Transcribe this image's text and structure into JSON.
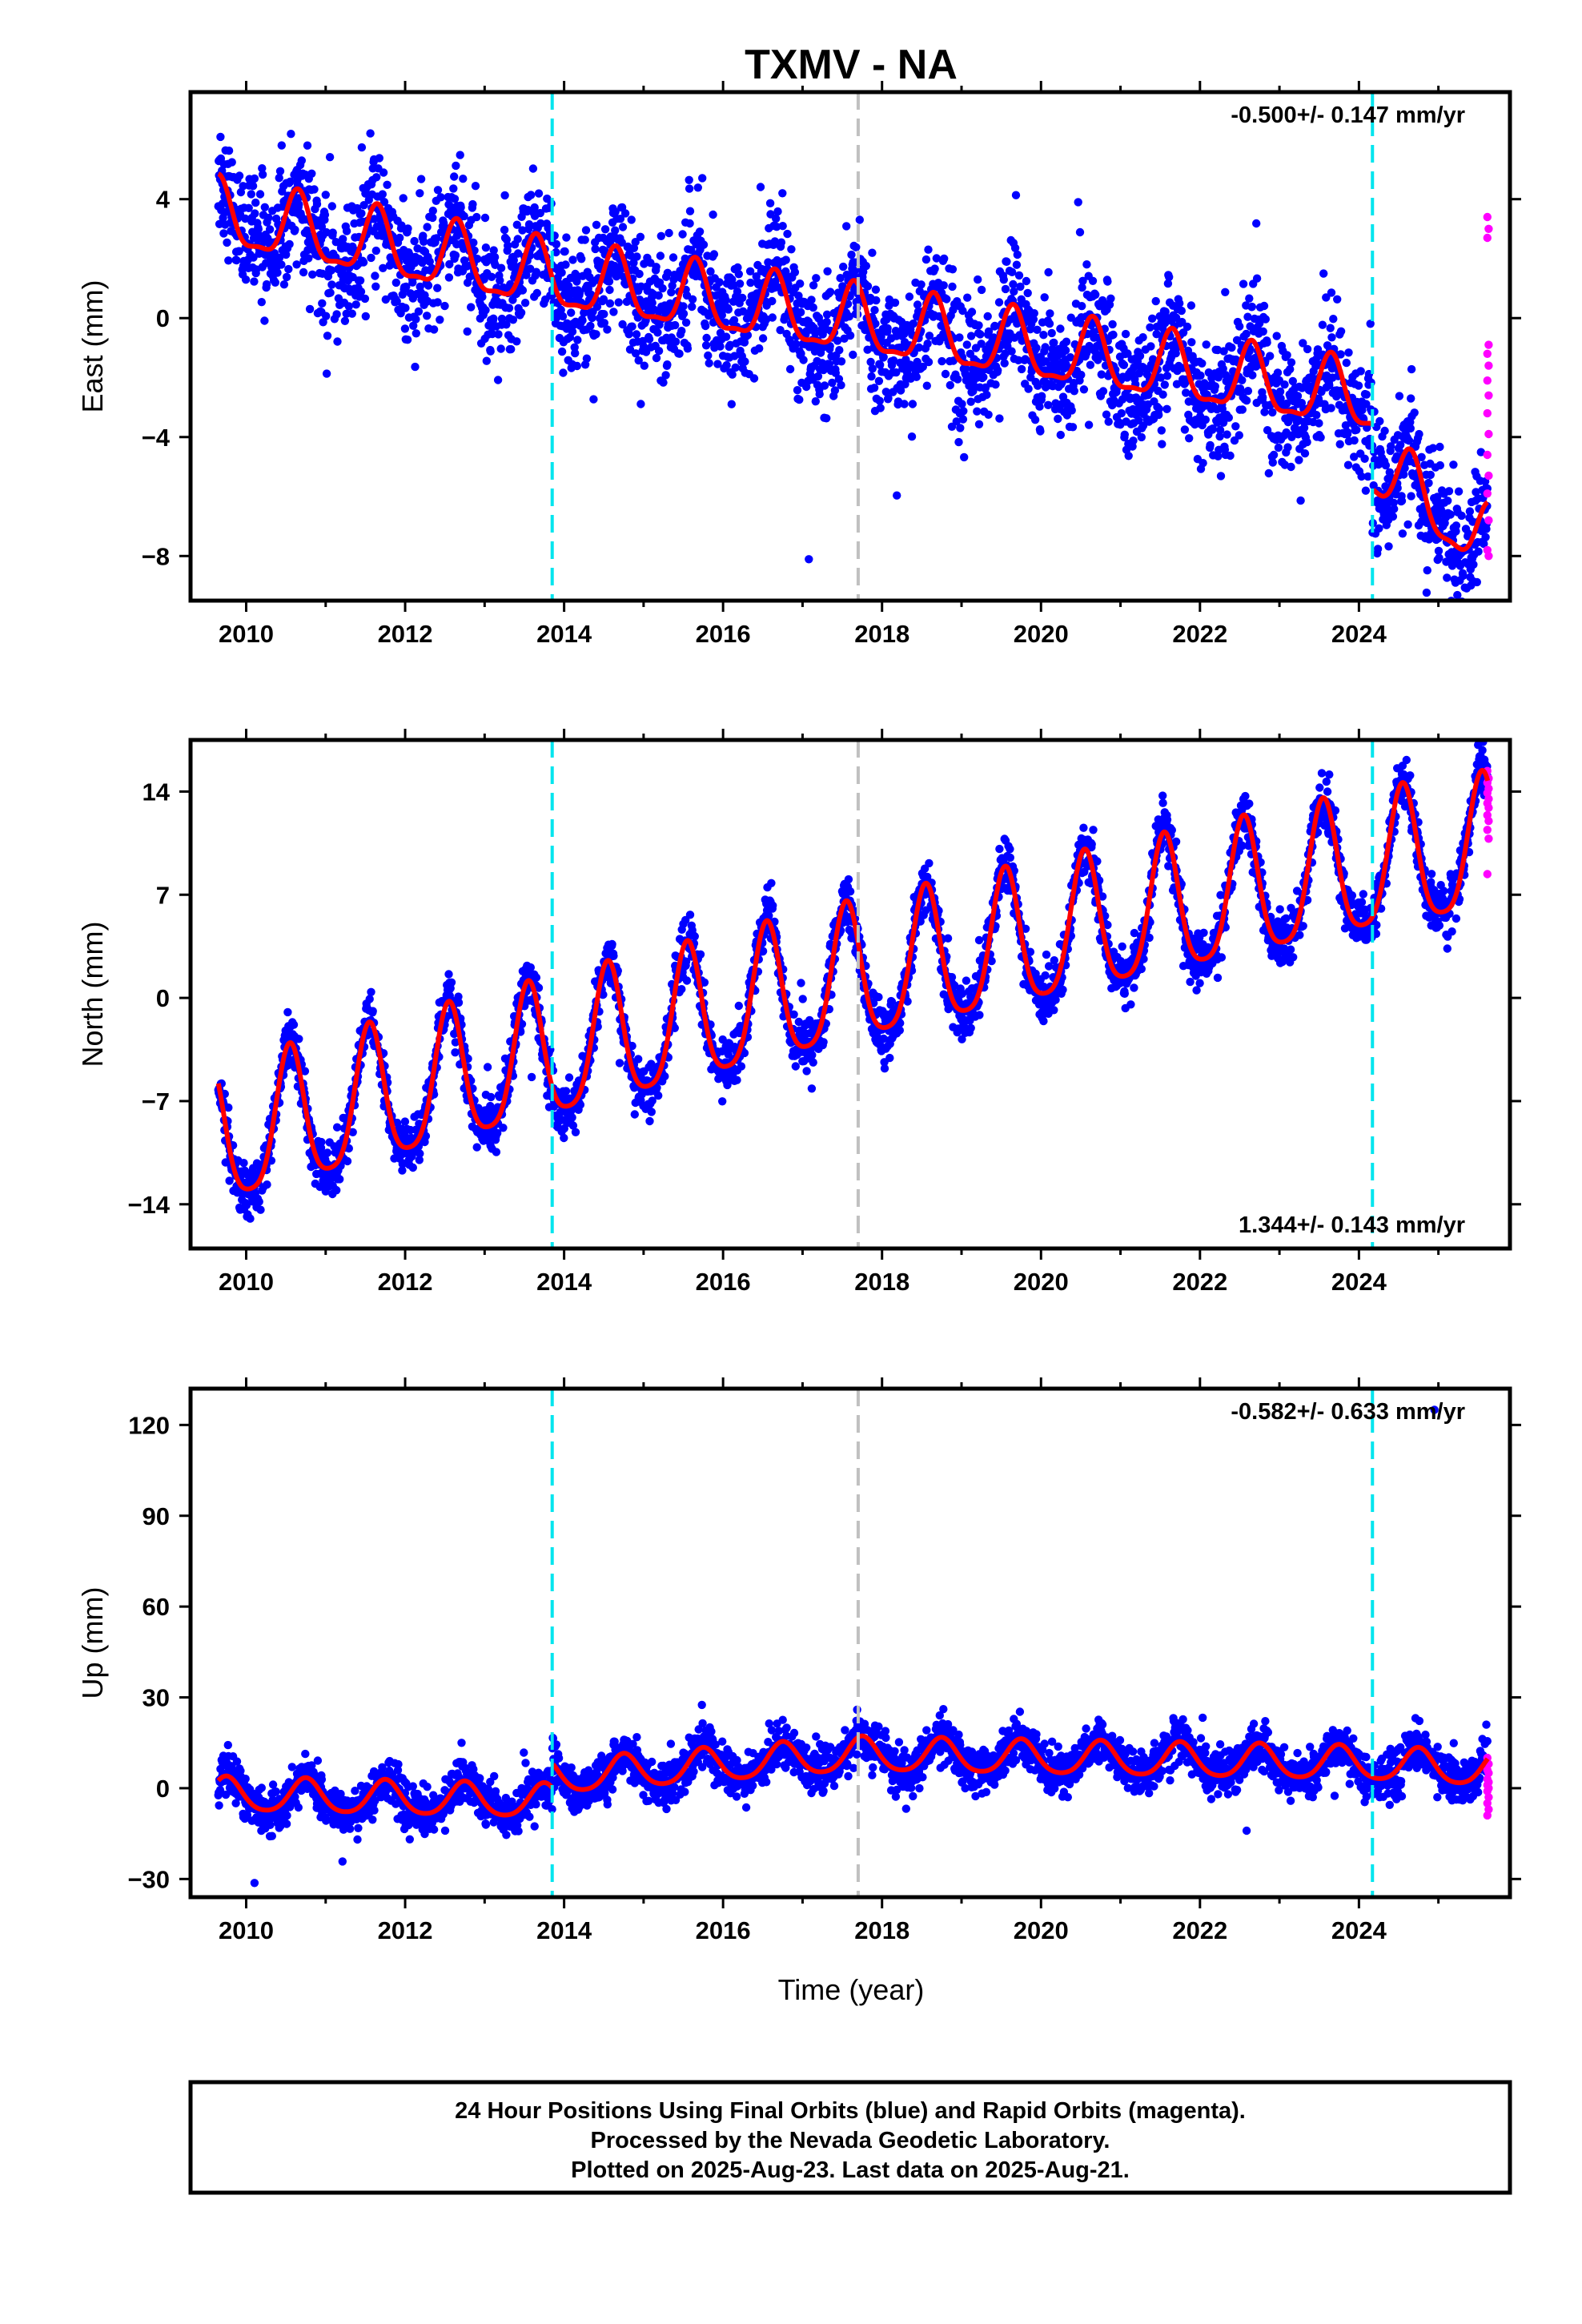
{
  "title": "TXMV - NA",
  "x_axis_label": "Time (year)",
  "footer": {
    "line1": "24 Hour Positions Using Final Orbits (blue) and Rapid Orbits (magenta).",
    "line2": "Processed by the Nevada Geodetic Laboratory.",
    "line3": "Plotted on 2025-Aug-23. Last data on 2025-Aug-21."
  },
  "colors": {
    "final_orbits": "#0000ff",
    "rapid_orbits": "#ff00ff",
    "model_fit": "#ff0000",
    "equipment_change": "#00e5ee",
    "event_marker": "#c0c0c0",
    "frame": "#000000"
  },
  "chart_data": [
    {
      "type": "scatter",
      "panel": "east",
      "ylabel": "East (mm)",
      "rate_text": "-0.500+/- 0.147 mm/yr",
      "rate_position": "top-right",
      "xlim": [
        2009.3,
        2025.9
      ],
      "ylim": [
        -9.5,
        7.6
      ],
      "x_ticks": [
        2010,
        2012,
        2014,
        2016,
        2018,
        2020,
        2022,
        2024
      ],
      "y_ticks": [
        -8,
        -4,
        0,
        4
      ],
      "y_tick_labels": [
        "−8",
        "−4",
        "0",
        "4"
      ],
      "vertical_lines": [
        {
          "x": 2013.85,
          "color": "cyan"
        },
        {
          "x": 2017.7,
          "color": "gray"
        },
        {
          "x": 2024.17,
          "color": "cyan"
        }
      ],
      "model": {
        "t0": 2009.65,
        "t1": 2025.62,
        "trend": [
          [
            2009.65,
            3.4
          ],
          [
            2013.85,
            1.3
          ],
          [
            2017.7,
            -0.2
          ],
          [
            2024.17,
            -2.8
          ],
          [
            2025.62,
            -5.4
          ]
        ],
        "offsets": [
          {
            "x": 2024.17,
            "dy": -2.2
          }
        ],
        "annual_amplitude": 1.1,
        "annual_peak": 0.65,
        "semiannual_amplitude": 0.35,
        "noise_sd": 1.05
      },
      "rapid_values": [
        3.4,
        3.0,
        2.7,
        -0.9,
        -1.2,
        -1.6,
        -2.1,
        -2.6,
        -3.2,
        -3.9,
        -4.6,
        -5.3,
        -5.9,
        -6.8,
        -7.8,
        -8.0
      ]
    },
    {
      "type": "scatter",
      "panel": "north",
      "ylabel": "North (mm)",
      "rate_text": "1.344+/- 0.143 mm/yr",
      "rate_position": "bottom-right",
      "xlim": [
        2009.3,
        2025.9
      ],
      "ylim": [
        -17.0,
        17.5
      ],
      "x_ticks": [
        2010,
        2012,
        2014,
        2016,
        2018,
        2020,
        2022,
        2024
      ],
      "y_ticks": [
        -14,
        -7,
        0,
        7,
        14
      ],
      "y_tick_labels": [
        "−14",
        "−7",
        "0",
        "7",
        "14"
      ],
      "vertical_lines": [
        {
          "x": 2013.85,
          "color": "cyan"
        },
        {
          "x": 2017.7,
          "color": "gray"
        },
        {
          "x": 2024.17,
          "color": "cyan"
        }
      ],
      "model": {
        "t0": 2009.65,
        "t1": 2025.62,
        "trend": [
          [
            2009.65,
            -9.8
          ],
          [
            2013.85,
            -3.9
          ],
          [
            2017.7,
            1.3
          ],
          [
            2024.17,
            8.8
          ],
          [
            2025.62,
            10.0
          ]
        ],
        "offsets": [],
        "annual_amplitude": 4.6,
        "annual_peak": 0.55,
        "semiannual_amplitude": 0.9,
        "noise_sd": 0.9
      },
      "rapid_values": [
        15.4,
        14.9,
        14.6,
        14.2,
        13.9,
        13.5,
        13.2,
        12.9,
        12.4,
        12.0,
        11.4,
        10.8,
        8.4
      ]
    },
    {
      "type": "scatter",
      "panel": "up",
      "ylabel": "Up (mm)",
      "rate_text": "-0.582+/- 0.633 mm/yr",
      "rate_position": "top-right",
      "xlim": [
        2009.3,
        2025.9
      ],
      "ylim": [
        -36,
        132
      ],
      "x_ticks": [
        2010,
        2012,
        2014,
        2016,
        2018,
        2020,
        2022,
        2024
      ],
      "y_ticks": [
        -30,
        0,
        30,
        60,
        90,
        120
      ],
      "y_tick_labels": [
        "−30",
        "0",
        "30",
        "60",
        "90",
        "120"
      ],
      "vertical_lines": [
        {
          "x": 2013.85,
          "color": "cyan"
        },
        {
          "x": 2017.7,
          "color": "gray"
        },
        {
          "x": 2024.17,
          "color": "cyan"
        }
      ],
      "model": {
        "t0": 2009.65,
        "t1": 2025.62,
        "trend": [
          [
            2009.65,
            -2.2
          ],
          [
            2013.85,
            -4.5
          ],
          [
            2017.7,
            3.0
          ],
          [
            2024.17,
            0.0
          ],
          [
            2025.62,
            -2.0
          ]
        ],
        "offsets": [
          {
            "x": 2013.85,
            "dy": 8.0
          }
        ],
        "annual_amplitude": 5.5,
        "annual_peak": 0.75,
        "semiannual_amplitude": 0.8,
        "noise_sd": 3.6
      },
      "rapid_values": [
        10,
        8,
        6,
        5,
        3,
        2,
        1,
        0,
        -1,
        -3,
        -5,
        -7,
        -9
      ],
      "outliers": [
        [
          2024.95,
          125
        ]
      ]
    }
  ]
}
